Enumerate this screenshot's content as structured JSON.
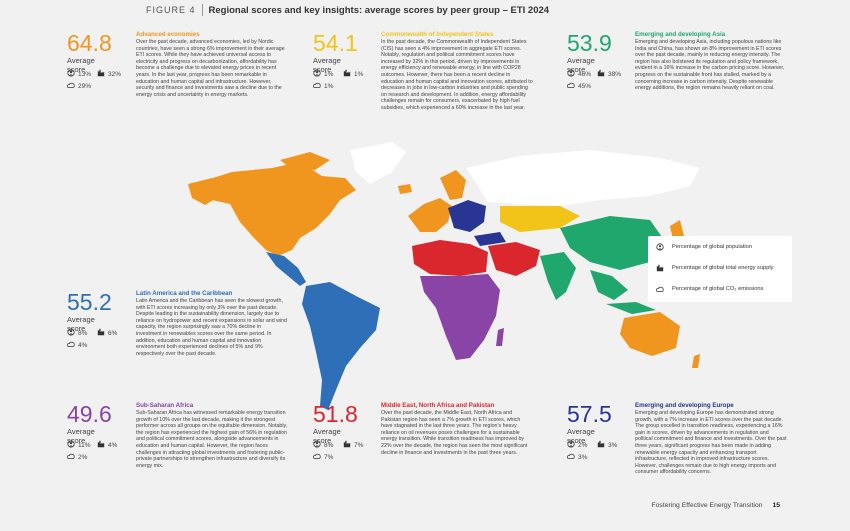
{
  "header": {
    "figure_label": "FIGURE 4",
    "title": "Regional scores and key insights: average scores by peer group – ETI 2024"
  },
  "avg_label": "Average score",
  "regions": [
    {
      "id": "advanced",
      "score": "64.8",
      "color": "#f0961e",
      "title": "Advanced economies",
      "pop": "13%",
      "energy": "32%",
      "co2": "29%",
      "text": "Over the past decade, advanced economies, led by Nordic countries, have seen a strong 6% improvement in their average ETI scores. While they have achieved universal access to electricity and progress on decarbonization, affordability has become a challenge due to elevated energy prices in recent years. In the last year, progress has been remarkable in education and human capital and infrastructure. However, security and finance and investments saw a decline due to the energy crisis and uncertainty in energy markets."
    },
    {
      "id": "cis",
      "score": "54.1",
      "color": "#f2c319",
      "title": "Commonwealth of Independent States",
      "pop": "1%",
      "energy": "1%",
      "co2": "1%",
      "text": "In the past decade, the Commonwealth of Independent States (CIS) has seen a 4% improvement in aggregate ETI scores. Notably, regulation and political commitment scores have increased by 32% in this period, driven by improvements in energy efficiency and renewable energy, in line with COP28 outcomes. However, there has been a recent decline in education and human capital and innovation scores, attributed to decreases in jobs in low-carbon industries and public spending on research and development. In addition, energy affordability challenges remain for consumers, exacerbated by high fuel subsidies, which experienced a 60% increase in the last year."
    },
    {
      "id": "asia",
      "score": "53.9",
      "color": "#1fa76d",
      "title": "Emerging and developing Asia",
      "pop": "46%",
      "energy": "38%",
      "co2": "45%",
      "text": "Emerging and developing Asia, including populous nations like India and China, has shown an 8% improvement in ETI scores over the past decade, mainly in reducing energy intensity. The region has also bolstered its regulation and policy framework, evident in a 16% increase in the carbon pricing score. However, progress on the sustainable front has stalled, marked by a concerning increase in carbon intensity. Despite renewable energy additions, the region remains heavily reliant on coal."
    },
    {
      "id": "latam",
      "score": "55.2",
      "color": "#2e6fb7",
      "title": "Latin America and the Caribbean",
      "pop": "8%",
      "energy": "6%",
      "co2": "4%",
      "text": "Latin America and the Caribbean has seen the slowest growth, with ETI scores increasing by only 3% over the past decade. Despite leading in the sustainability dimension, largely due to reliance on hydropower and recent expansions in solar and wind capacity, the region surprisingly saw a 70% decline in investment in renewables scores over the same period. In addition, education and human capital and innovation environment both experienced declines of 5% and 9% respectively over the past decade."
    },
    {
      "id": "ssa",
      "score": "49.6",
      "color": "#8a44a6",
      "title": "Sub-Saharan Africa",
      "pop": "11%",
      "energy": "4%",
      "co2": "2%",
      "text": "Sub-Saharan Africa has witnessed remarkable energy transition growth of 10% over the last decade, making it the strongest performer across all groups on the equitable dimension. Notably, the region has experienced the highest gain of 56% in regulation and political commitment scores, alongside advancements in education and human capital. However, the region faces challenges in attracting global investments and fostering public-private partnerships to strengthen infrastructure and diversify its energy mix."
    },
    {
      "id": "mena",
      "score": "51.8",
      "color": "#d9272d",
      "title": "Middle East, North Africa and Pakistan",
      "pop": "8%",
      "energy": "7%",
      "co2": "7%",
      "text": "Over the past decade, the Middle East, North Africa and Pakistan region has seen a 7% growth in ETI scores, which have stagnated in the last three years. The region's heavy reliance on oil revenues poses challenges for a sustainable energy transition. While transition readiness has improved by 22% over the decade, the region has seen the most significant decline in finance and investments in the past three years."
    },
    {
      "id": "europe",
      "score": "57.5",
      "color": "#283593",
      "title": "Emerging and developing Europe",
      "pop": "2%",
      "energy": "3%",
      "co2": "3%",
      "text": "Emerging and developing Europe has demonstrated strong growth, with a 7% increase in ETI scores over the past decade. The group excelled in transition readiness, experiencing a 16% gain in scores, driven by advancements in regulation and political commitment and finance and investments. Over the past three years, significant progress has been made in adding renewable energy capacity and enhancing transport infrastructure, reflected in improved infrastructure scores. However, challenges remain due to high energy imports and consumer affordability concerns."
    }
  ],
  "legend": {
    "population": "Percentage of global population",
    "energy": "Percentage of global total energy supply",
    "co2": "Percentage of global CO₂ emissions"
  },
  "footer": {
    "text": "Fostering Effective Energy Transition",
    "page": "15"
  },
  "icons": {
    "population": "globe-people-icon",
    "energy": "factory-icon",
    "co2": "cloud-co2-icon"
  }
}
